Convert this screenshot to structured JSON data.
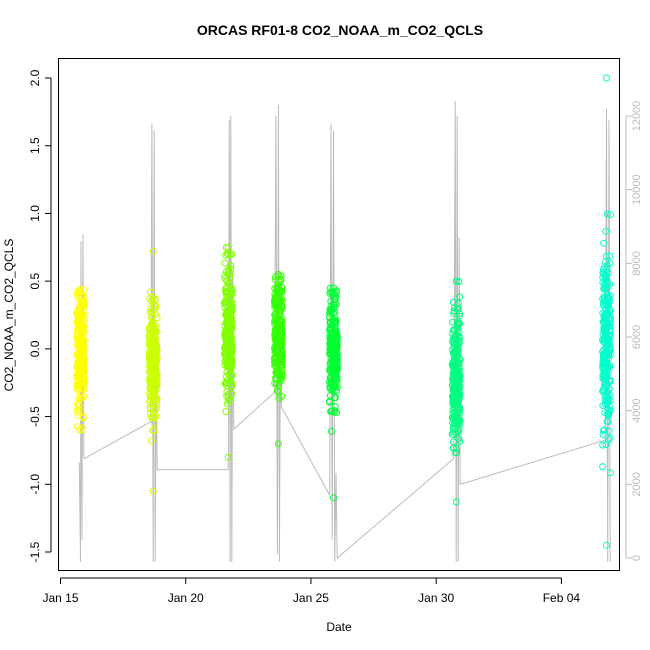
{
  "chart_data": {
    "type": "scatter",
    "title": "ORCAS RF01-8 CO2_NOAA_m_CO2_QCLS",
    "xlabel": "Date",
    "ylabel": "CO2_NOAA_m_CO2_QCLS",
    "x_ticks": [
      "Jan 15",
      "Jan 20",
      "Jan 25",
      "Jan 30",
      "Feb 04"
    ],
    "x_tick_days": [
      15,
      20,
      25,
      30,
      35
    ],
    "xlim_days": [
      14.9,
      37.3
    ],
    "y_ticks": [
      "-1.5",
      "-1.0",
      "-0.5",
      "0.0",
      "0.5",
      "1.0",
      "1.5",
      "2.0"
    ],
    "ylim": [
      -1.5,
      2.0
    ],
    "y2_ticks": [
      "0",
      "2000",
      "4000",
      "6000",
      "8000",
      "10000",
      "12000"
    ],
    "y2lim": [
      -200,
      12800
    ],
    "y2_color": "#bbbbbb",
    "grid": false,
    "series": [
      {
        "day": 15.8,
        "center": 0.0,
        "spread": 0.22,
        "min": -0.6,
        "max": 0.44,
        "color": "#ffff00"
      },
      {
        "day": 18.7,
        "center": -0.1,
        "spread": 0.22,
        "min": -1.05,
        "max": 0.72,
        "color": "#ccff00"
      },
      {
        "day": 21.7,
        "center": 0.1,
        "spread": 0.24,
        "min": -0.8,
        "max": 0.75,
        "color": "#80ff00"
      },
      {
        "day": 23.7,
        "center": 0.15,
        "spread": 0.2,
        "min": -0.7,
        "max": 0.55,
        "color": "#33ff00"
      },
      {
        "day": 25.9,
        "center": 0.0,
        "spread": 0.22,
        "min": -1.1,
        "max": 0.45,
        "color": "#00ff33"
      },
      {
        "day": 30.8,
        "center": -0.2,
        "spread": 0.24,
        "min": -1.13,
        "max": 0.5,
        "color": "#00ff80"
      },
      {
        "day": 36.8,
        "center": 0.0,
        "spread": 0.35,
        "min": -1.45,
        "max": 2.0,
        "color": "#00ffcc"
      }
    ],
    "altitude_trace": {
      "color": "#bbbbbb",
      "points": [
        [
          15.75,
          2600
        ],
        [
          15.8,
          -100
        ],
        [
          15.82,
          8600
        ],
        [
          15.86,
          500
        ],
        [
          15.9,
          8800
        ],
        [
          15.93,
          2800
        ],
        [
          15.95,
          2700
        ],
        [
          18.6,
          3700
        ],
        [
          18.65,
          11800
        ],
        [
          18.7,
          -100
        ],
        [
          18.74,
          11600
        ],
        [
          18.78,
          -100
        ],
        [
          18.82,
          5200
        ],
        [
          18.86,
          2400
        ],
        [
          21.7,
          2400
        ],
        [
          21.74,
          11900
        ],
        [
          21.77,
          -100
        ],
        [
          21.8,
          12000
        ],
        [
          21.84,
          -100
        ],
        [
          21.88,
          7800
        ],
        [
          21.92,
          3500
        ],
        [
          23.55,
          4500
        ],
        [
          23.6,
          12000
        ],
        [
          23.66,
          100
        ],
        [
          23.7,
          12300
        ],
        [
          23.74,
          -100
        ],
        [
          23.78,
          5800
        ],
        [
          23.82,
          4100
        ],
        [
          25.75,
          1700
        ],
        [
          25.8,
          11800
        ],
        [
          25.85,
          500
        ],
        [
          25.9,
          11600
        ],
        [
          25.95,
          -100
        ],
        [
          26.0,
          2300
        ],
        [
          26.05,
          0
        ],
        [
          30.7,
          2700
        ],
        [
          30.76,
          12400
        ],
        [
          30.8,
          -100
        ],
        [
          30.84,
          12000
        ],
        [
          30.88,
          -100
        ],
        [
          30.92,
          8700
        ],
        [
          30.96,
          2000
        ],
        [
          36.75,
          3200
        ],
        [
          36.8,
          12200
        ],
        [
          36.85,
          -100
        ],
        [
          36.9,
          11900
        ],
        [
          36.95,
          -100
        ]
      ]
    }
  }
}
